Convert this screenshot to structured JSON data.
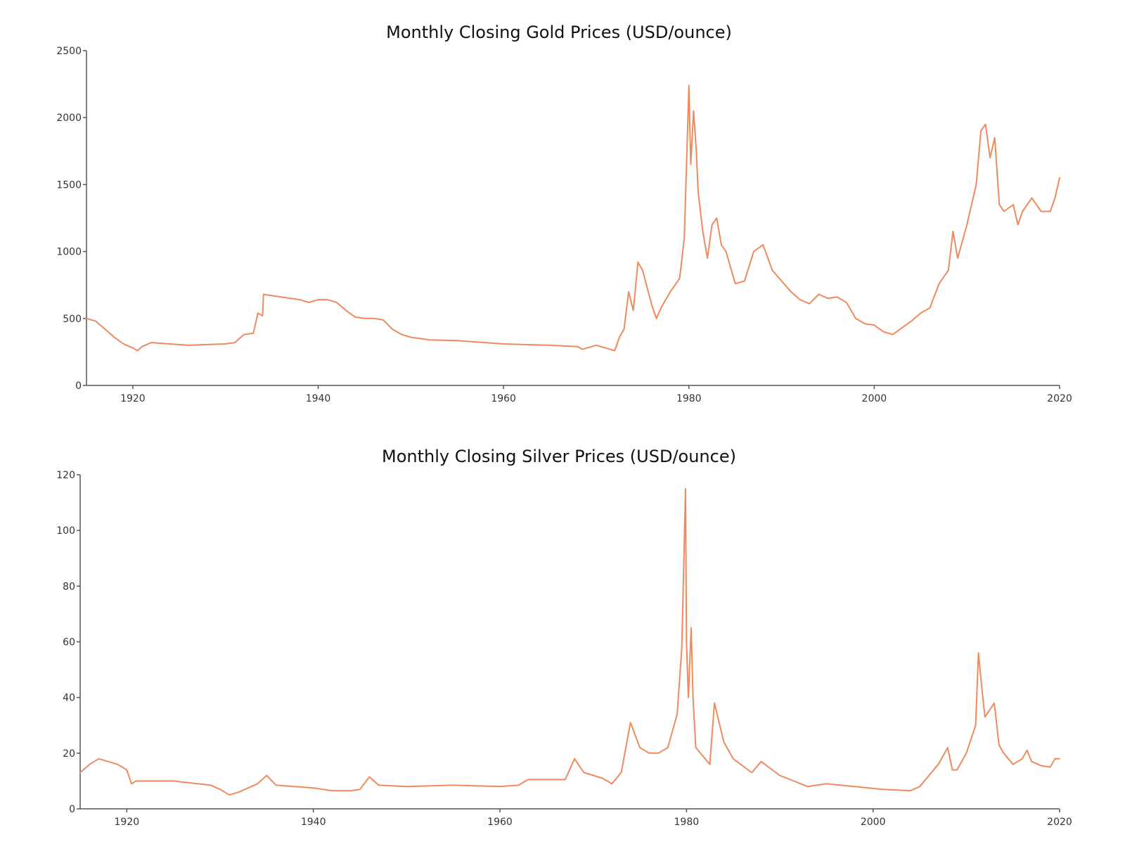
{
  "colors": {
    "line": "#f08a5d",
    "axis": "#555555",
    "text": "#111111"
  },
  "chart_data": [
    {
      "type": "line",
      "title": "Monthly Closing Gold Prices (USD/ounce)",
      "xlim": [
        1915,
        2020
      ],
      "ylim": [
        0,
        2500
      ],
      "xticks": [
        1920,
        1940,
        1960,
        1980,
        2000,
        2020
      ],
      "yticks": [
        0,
        500,
        1000,
        1500,
        2000,
        2500
      ],
      "grid": false,
      "series": [
        {
          "x": [
            1915,
            1916,
            1917,
            1918,
            1919,
            1920,
            1920.5,
            1921,
            1922,
            1924,
            1926,
            1928,
            1930,
            1931,
            1932,
            1933,
            1933.5,
            1934,
            1934.1,
            1936,
            1938,
            1939,
            1940,
            1941,
            1942,
            1943,
            1944,
            1945,
            1946,
            1947,
            1948,
            1949,
            1950,
            1951,
            1952,
            1955,
            1958,
            1960,
            1965,
            1968,
            1968.5,
            1970,
            1971,
            1972,
            1972.5,
            1973,
            1973.5,
            1974,
            1974.5,
            1975,
            1976,
            1976.5,
            1977,
            1978,
            1979,
            1979.5,
            1980,
            1980.2,
            1980.5,
            1980.8,
            1981,
            1981.5,
            1982,
            1982.5,
            1983,
            1983.5,
            1984,
            1985,
            1986,
            1987,
            1988,
            1989,
            1990,
            1991,
            1992,
            1993,
            1994,
            1995,
            1996,
            1997,
            1998,
            1999,
            2000,
            2001,
            2002,
            2003,
            2004,
            2005,
            2006,
            2007,
            2008,
            2008.5,
            2009,
            2010,
            2011,
            2011.5,
            2012,
            2012.5,
            2013,
            2013.5,
            2014,
            2015,
            2015.5,
            2016,
            2017,
            2018,
            2019,
            2019.5,
            2020
          ],
          "y": [
            500,
            480,
            420,
            360,
            310,
            280,
            260,
            290,
            320,
            310,
            300,
            305,
            310,
            320,
            380,
            390,
            540,
            520,
            680,
            660,
            640,
            620,
            640,
            640,
            620,
            560,
            510,
            500,
            500,
            490,
            420,
            380,
            360,
            350,
            340,
            335,
            320,
            310,
            300,
            290,
            270,
            300,
            280,
            260,
            360,
            420,
            700,
            560,
            920,
            860,
            600,
            500,
            580,
            700,
            800,
            1100,
            2240,
            1650,
            2050,
            1750,
            1450,
            1150,
            950,
            1200,
            1250,
            1050,
            1000,
            760,
            780,
            1000,
            1050,
            860,
            780,
            700,
            640,
            610,
            680,
            650,
            660,
            620,
            500,
            460,
            450,
            400,
            380,
            430,
            480,
            540,
            580,
            760,
            860,
            1150,
            950,
            1200,
            1500,
            1900,
            1950,
            1700,
            1850,
            1350,
            1300,
            1350,
            1200,
            1300,
            1400,
            1300,
            1300,
            1400,
            1550
          ]
        }
      ]
    },
    {
      "type": "line",
      "title": "Monthly Closing Silver Prices (USD/ounce)",
      "xlim": [
        1915,
        2020
      ],
      "ylim": [
        0,
        120
      ],
      "xticks": [
        1920,
        1940,
        1960,
        1980,
        2000,
        2020
      ],
      "yticks": [
        0,
        20,
        40,
        60,
        80,
        100,
        120
      ],
      "grid": false,
      "series": [
        {
          "x": [
            1915,
            1916,
            1917,
            1918,
            1919,
            1920,
            1920.5,
            1921,
            1925,
            1929,
            1930,
            1931,
            1932,
            1933,
            1934,
            1935,
            1936,
            1940,
            1942,
            1944,
            1945,
            1946,
            1947,
            1950,
            1955,
            1960,
            1962,
            1963,
            1967,
            1968,
            1969,
            1970,
            1971,
            1972,
            1973,
            1974,
            1975,
            1976,
            1977,
            1978,
            1979,
            1979.5,
            1979.9,
            1980,
            1980.2,
            1980.5,
            1980.7,
            1981,
            1982,
            1982.5,
            1983,
            1984,
            1985,
            1987,
            1988,
            1990,
            1993,
            1995,
            1998,
            2001,
            2004,
            2005,
            2006,
            2007,
            2008,
            2008.5,
            2009,
            2010,
            2011,
            2011.3,
            2011.7,
            2012,
            2013,
            2013.5,
            2014,
            2015,
            2016,
            2016.5,
            2017,
            2018,
            2019,
            2019.5,
            2020
          ],
          "y": [
            13,
            16,
            18,
            17,
            16,
            14,
            9,
            10,
            10,
            8.5,
            7,
            5,
            6,
            7.5,
            9,
            12,
            8.5,
            7.5,
            6.5,
            6.5,
            7,
            11.5,
            8.5,
            8,
            8.5,
            8,
            8.5,
            10.5,
            10.5,
            18,
            13,
            12,
            11,
            9,
            13,
            31,
            22,
            20,
            20,
            22,
            34,
            58,
            115,
            60,
            40,
            65,
            40,
            22,
            18,
            16,
            38,
            24,
            18,
            13,
            17,
            12,
            8,
            9,
            8,
            7,
            6.5,
            8,
            12,
            16,
            22,
            14,
            14,
            20,
            30,
            56,
            42,
            33,
            38,
            23,
            20,
            16,
            18,
            21,
            17,
            15.5,
            15,
            18,
            18
          ]
        }
      ]
    }
  ]
}
